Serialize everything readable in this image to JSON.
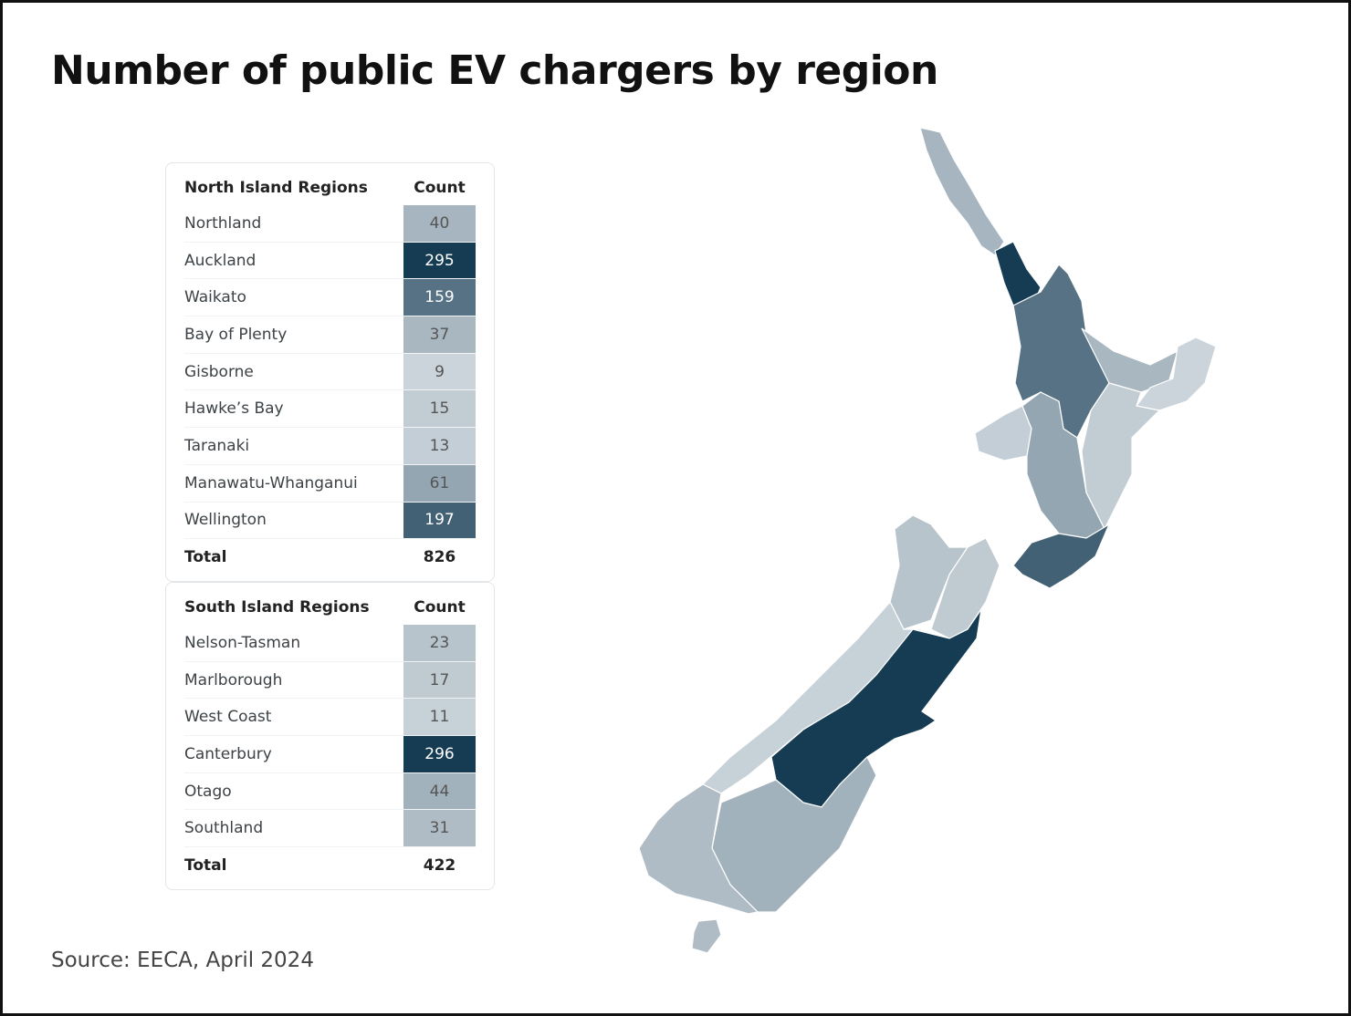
{
  "title": "Number of public EV chargers by region",
  "tables": [
    {
      "header": [
        "North Island Regions",
        "Count"
      ],
      "rows": [
        [
          "Northland",
          40
        ],
        [
          "Auckland",
          295
        ],
        [
          "Waikato",
          159
        ],
        [
          "Bay of Plenty",
          37
        ],
        [
          "Gisborne",
          9
        ],
        [
          "Hawke’s Bay",
          15
        ],
        [
          "Taranaki",
          13
        ],
        [
          "Manawatu-Whanganui",
          61
        ],
        [
          "Wellington",
          197
        ]
      ],
      "total": [
        "Total",
        826
      ]
    },
    {
      "header": [
        "South Island Regions",
        "Count"
      ],
      "rows": [
        [
          "Nelson-Tasman",
          23
        ],
        [
          "Marlborough",
          17
        ],
        [
          "West Coast",
          11
        ],
        [
          "Canterbury",
          296
        ],
        [
          "Otago",
          44
        ],
        [
          "Southland",
          31
        ]
      ],
      "total": [
        "Total",
        422
      ]
    }
  ],
  "source": "Source: EECA, April 2024"
}
